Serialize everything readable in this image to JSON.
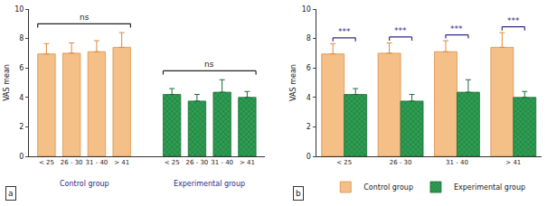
{
  "chart_data": [
    {
      "type": "bar",
      "title": "a",
      "y_label": "VAS mean",
      "categories": [
        "< 25",
        "26 - 30",
        "31 - 40",
        "> 41"
      ],
      "series": [
        {
          "name": "Control group",
          "color": "#f5bf88",
          "values": [
            6.95,
            7.0,
            7.1,
            7.4
          ],
          "errors": [
            0.7,
            0.7,
            0.75,
            1.0
          ]
        },
        {
          "name": "Experimental group",
          "color": "#2e9e52",
          "marker": "crosshatch",
          "values": [
            4.2,
            3.75,
            4.35,
            4.0
          ],
          "errors": [
            0.4,
            0.45,
            0.85,
            0.4
          ]
        }
      ],
      "annotations": [
        {
          "text": "ns",
          "series": "Control group"
        },
        {
          "text": "ns",
          "series": "Experimental group"
        }
      ],
      "ylim": [
        0,
        10
      ],
      "yticks": [
        0,
        2,
        4,
        6,
        8,
        10
      ]
    },
    {
      "type": "bar",
      "title": "b",
      "y_label": "VAS mean",
      "legend": "bottom",
      "categories": [
        "< 25",
        "26 - 30",
        "31 - 40",
        "> 41"
      ],
      "series": [
        {
          "name": "Control group",
          "color": "#f5bf88",
          "values": [
            6.95,
            7.0,
            7.1,
            7.4
          ],
          "errors": [
            0.7,
            0.7,
            0.75,
            1.0
          ]
        },
        {
          "name": "Experimental group",
          "color": "#2e9e52",
          "marker": "crosshatch",
          "values": [
            4.2,
            3.75,
            4.35,
            4.0
          ],
          "errors": [
            0.4,
            0.45,
            0.85,
            0.4
          ]
        }
      ],
      "annotations": [
        {
          "text": "***",
          "category": "< 25"
        },
        {
          "text": "***",
          "category": "26 - 30"
        },
        {
          "text": "***",
          "category": "31 - 40"
        },
        {
          "text": "***",
          "category": "> 41"
        }
      ],
      "ylim": [
        0,
        10
      ],
      "yticks": [
        0,
        2,
        4,
        6,
        8,
        10
      ]
    }
  ]
}
